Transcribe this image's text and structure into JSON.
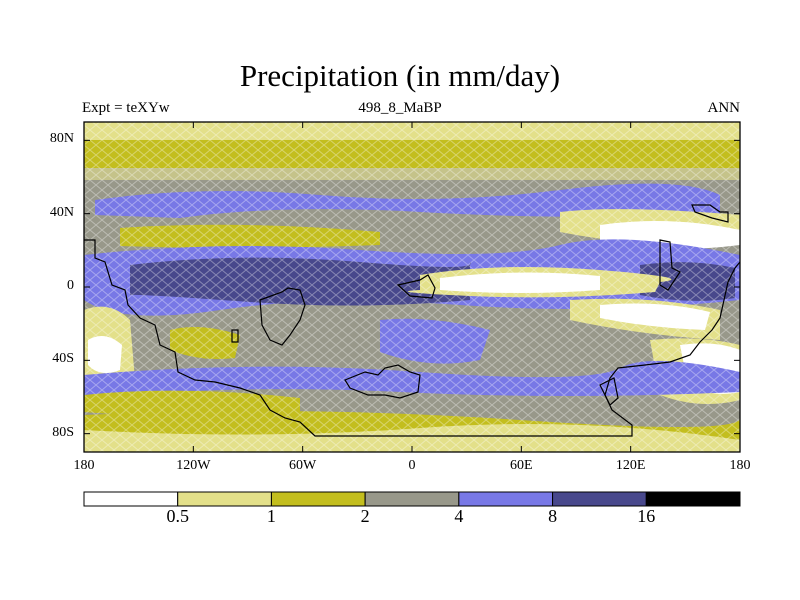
{
  "title": "Precipitation (in mm/day)",
  "left_string": "Expt = teXYw",
  "center_string": "498_8_MaBP",
  "right_string": "ANN",
  "lat_ticks": [
    {
      "label": "80N",
      "lat": 80
    },
    {
      "label": "40N",
      "lat": 40
    },
    {
      "label": "0",
      "lat": 0
    },
    {
      "label": "40S",
      "lat": -40
    },
    {
      "label": "80S",
      "lat": -80
    }
  ],
  "lon_ticks": [
    {
      "label": "180",
      "lon": -180
    },
    {
      "label": "120W",
      "lon": -120
    },
    {
      "label": "60W",
      "lon": -60
    },
    {
      "label": "0",
      "lon": 0
    },
    {
      "label": "60E",
      "lon": 60
    },
    {
      "label": "120E",
      "lon": 120
    },
    {
      "label": "180",
      "lon": 180
    }
  ],
  "colorbar": {
    "colors": [
      "#ffffff",
      "#e3e08a",
      "#c3be1e",
      "#98988a",
      "#7878e6",
      "#48488c",
      "#000000"
    ],
    "labels": [
      "0.5",
      "1",
      "2",
      "4",
      "8",
      "16"
    ]
  }
}
